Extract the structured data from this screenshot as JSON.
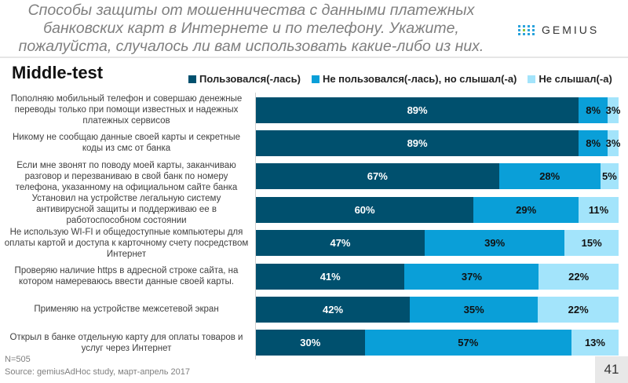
{
  "header": {
    "title": "Способы защиты от мошенничества с данными платежных банковских карт в Интернете и по телефону. Укажите, пожалуйста, случалось ли вам использовать какие-либо из них.",
    "logo_text": "GEMIUS"
  },
  "footer": {
    "n": "N=505",
    "source": "Source: gemiusAdHoc study, март-апрель 2017",
    "page": "41"
  },
  "chart_data": {
    "type": "bar",
    "orientation": "horizontal",
    "stacked": true,
    "title": "Middle-test",
    "legend_position": "top",
    "categories": [
      "Пополняю мобильный телефон и совершаю денежные переводы только при помощи известных и надежных платежных сервисов",
      "Никому не сообщаю данные своей карты и секретные коды из смс от банка",
      "Если мне звонят по поводу моей карты, заканчиваю разговор и перезваниваю в свой банк по номеру телефона, указанному на официальном сайте банка",
      "Установил на устройстве легальную систему антивирусной защиты и поддерживаю ее в работоспособном состоянии",
      "Не использую WI-FI и общедоступные компьютеры для оплаты картой и доступа к карточному счету посредством Интернет",
      "Проверяю наличие https в адресной строке сайта, на котором намереваюсь ввести данные своей карты.",
      "Применяю на устройстве межсетевой экран",
      "Открыл в банке отдельную карту для оплаты товаров и услуг через Интернет"
    ],
    "series": [
      {
        "name": "Пользовался(-лась)",
        "color": "#00506e",
        "label_color": "#ffffff",
        "values": [
          89,
          89,
          67,
          60,
          47,
          41,
          42,
          30
        ]
      },
      {
        "name": "Не пользовался(-лась), но слышал(-а)",
        "color": "#0a9fd8",
        "label_color": "#111111",
        "values": [
          8,
          8,
          28,
          29,
          39,
          37,
          35,
          57
        ]
      },
      {
        "name": "Не слышал(-а)",
        "color": "#a3e4fb",
        "label_color": "#111111",
        "values": [
          3,
          3,
          5,
          11,
          15,
          22,
          22,
          13
        ]
      }
    ],
    "unit": "%"
  }
}
